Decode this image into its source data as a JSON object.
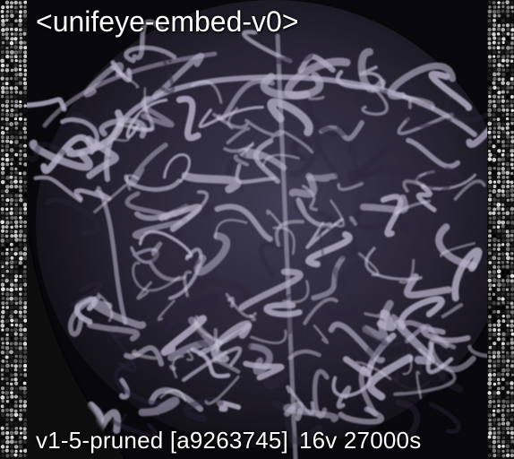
{
  "top_caption": "<unifeye-embed-v0>",
  "bottom_caption": {
    "model": "v1-5-pruned [a9263745]",
    "settings": "16v 27000s"
  },
  "image": {
    "subject": "pale lavender tangled vessel-like strands forming a dome over dark background",
    "colors": {
      "background": "#0a0810",
      "strands": "#b7b2c9",
      "shadow": "#2a2538",
      "side_noise": "#9a9a9a"
    }
  }
}
